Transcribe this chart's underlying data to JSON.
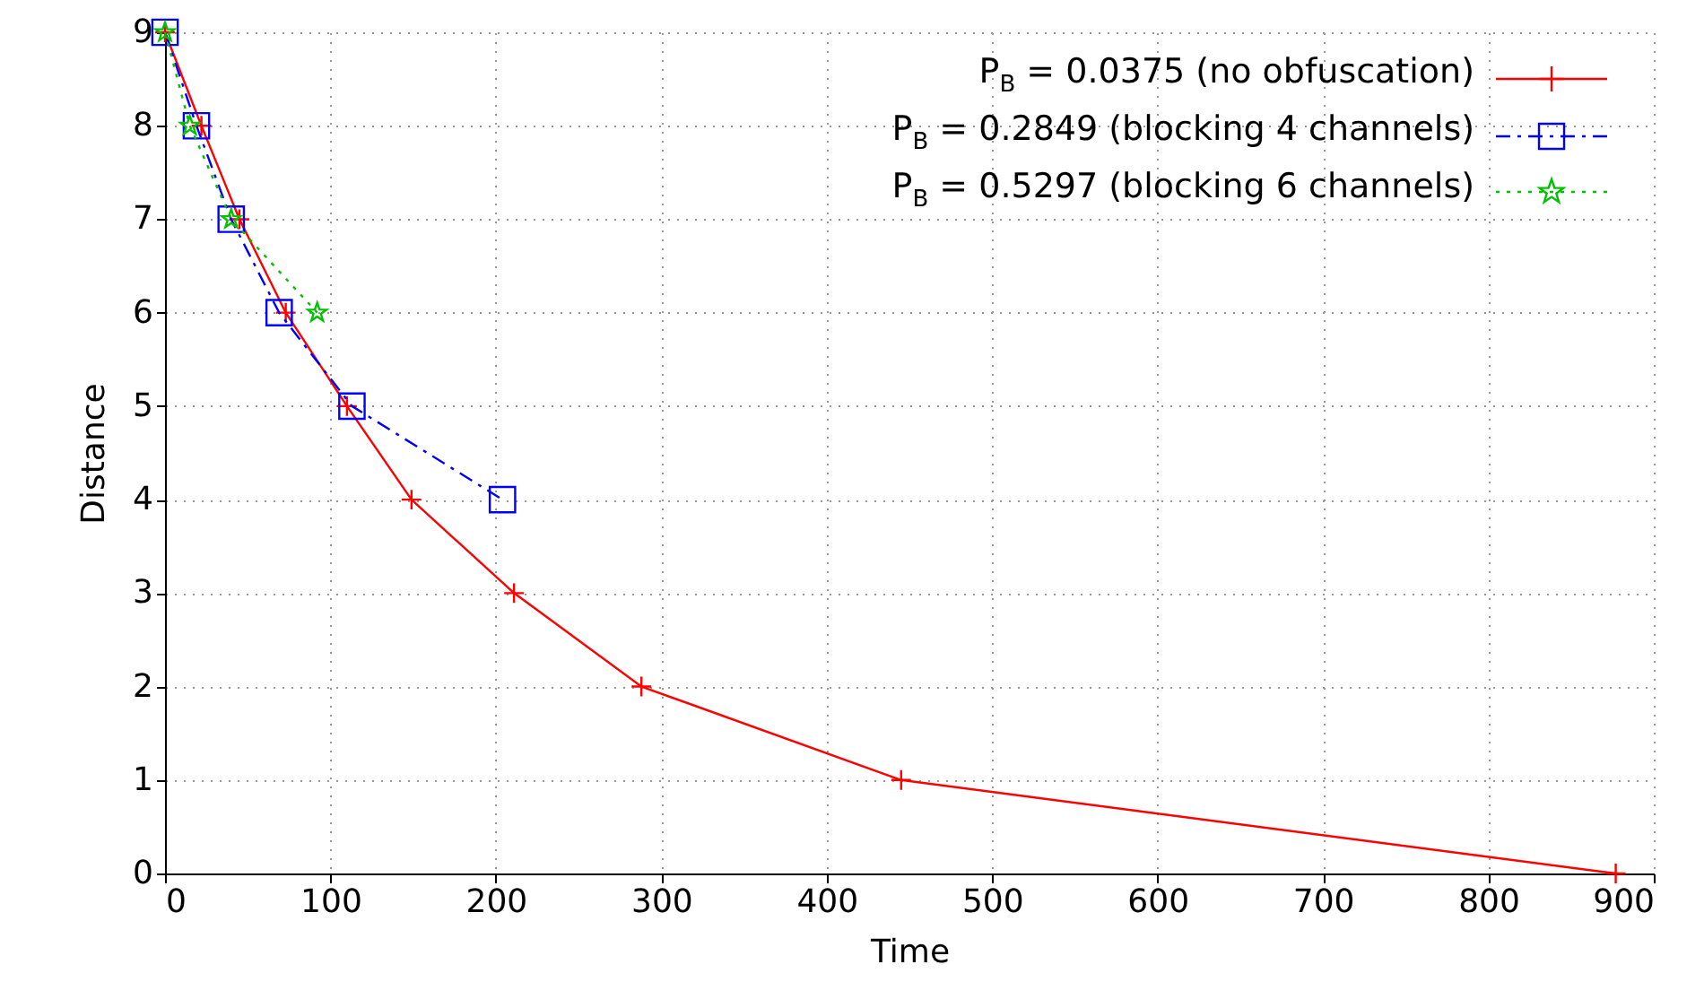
{
  "chart_data": {
    "type": "line",
    "xlabel": "Time",
    "ylabel": "Distance",
    "xlim": [
      0,
      900
    ],
    "xticks": [
      0,
      100,
      200,
      300,
      400,
      500,
      600,
      700,
      800,
      900
    ],
    "ylim": [
      0,
      9
    ],
    "yticks": [
      0,
      1,
      2,
      3,
      4,
      5,
      6,
      7,
      8,
      9
    ],
    "grid": true,
    "legend": "top right",
    "series": [
      {
        "name": "P$_{B}$ = 0.0375 (no obfuscation)",
        "color": "#ff0000",
        "marker": "cross",
        "line_style": "solid",
        "x": [
          0,
          22,
          45,
          73,
          110,
          149,
          211,
          288,
          445,
          877
        ],
        "values": [
          9,
          8,
          7,
          6,
          5,
          4,
          3,
          2,
          1,
          0
        ]
      },
      {
        "name": "P$_{B}$ = 0.2849 (blocking 4 channels)",
        "color": "#0000ff",
        "marker": "square",
        "line_style": "dashed",
        "x": [
          0,
          19,
          40,
          69,
          113,
          204
        ],
        "values": [
          9,
          8,
          7,
          6,
          5,
          4
        ]
      },
      {
        "name": "P$_{B}$ = 0.5297 (blocking 6 channels)",
        "color": "#00c000",
        "marker": "star",
        "line_style": "dotted",
        "x": [
          0,
          15,
          40,
          92
        ],
        "values": [
          9,
          8,
          7,
          6
        ]
      }
    ]
  }
}
